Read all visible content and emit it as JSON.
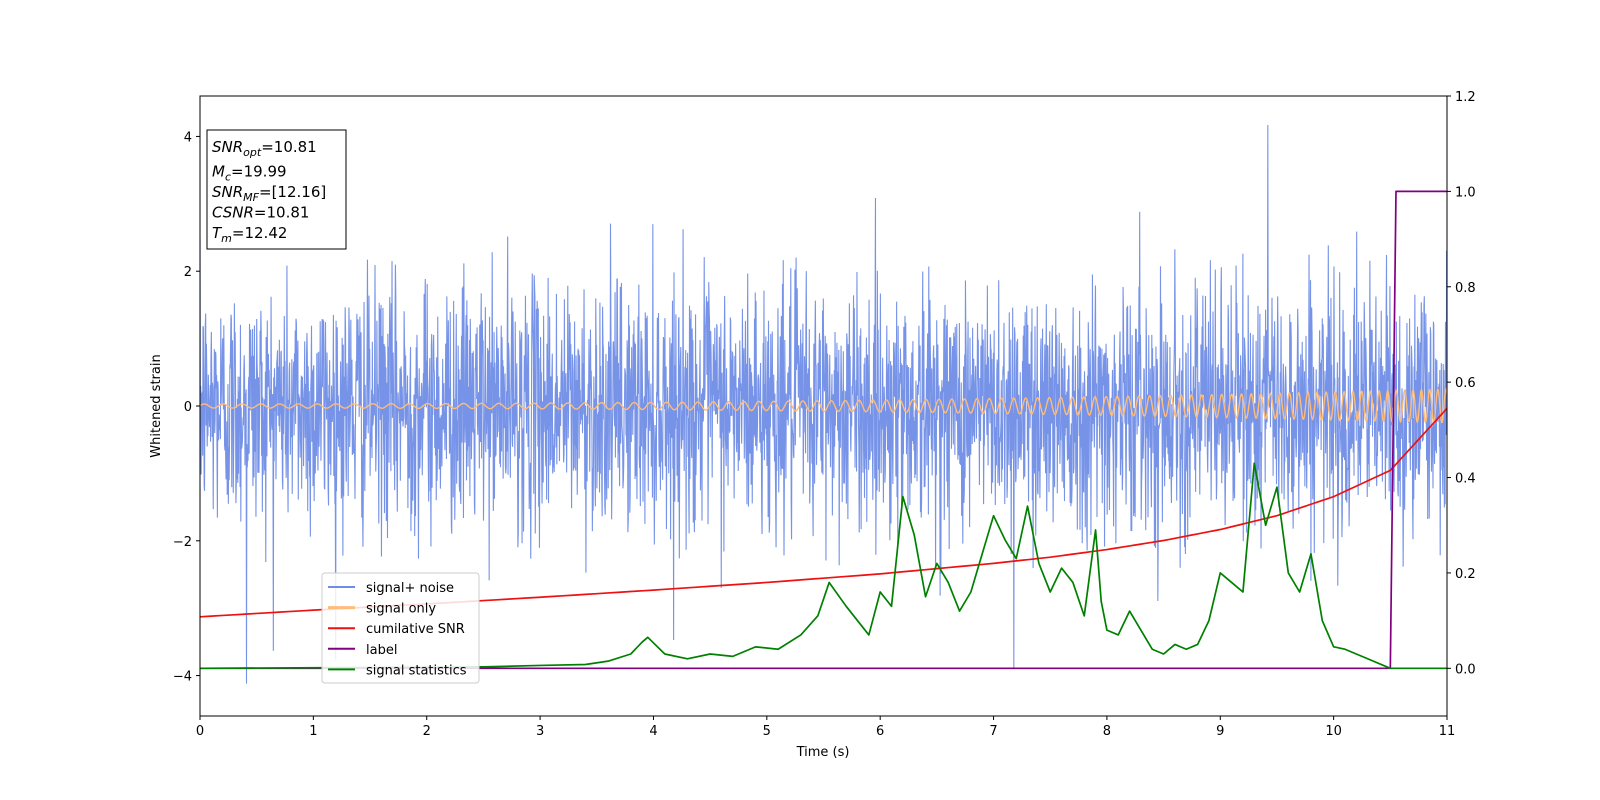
{
  "chart_data": {
    "type": "line",
    "xlabel": "Time (s)",
    "ylabel": "Whitened strain",
    "xlim": [
      0,
      11
    ],
    "ylim": [
      -4.6,
      4.6
    ],
    "y2lim": [
      -0.1,
      1.2
    ],
    "x_ticks": [
      "0",
      "1",
      "2",
      "3",
      "4",
      "5",
      "6",
      "7",
      "8",
      "9",
      "10",
      "11"
    ],
    "y_ticks": [
      "−4",
      "−2",
      "0",
      "2",
      "4"
    ],
    "y2_ticks": [
      "0.0",
      "0.2",
      "0.4",
      "0.6",
      "0.8",
      "1.0",
      "1.2"
    ],
    "legend_position": "lower-left",
    "annotation": {
      "lines": [
        {
          "sym": "SNR",
          "sub": "opt",
          "value": "=10.81"
        },
        {
          "sym": "M",
          "sub": "c",
          "value": "=19.99"
        },
        {
          "sym": "SNR",
          "sub": "MF",
          "value": "=[12.16]"
        },
        {
          "sym": "CSNR",
          "sub": "",
          "value": "=10.81"
        },
        {
          "sym": "T",
          "sub": "m",
          "value": "=12.42"
        }
      ]
    },
    "series": [
      {
        "name": "signal+ noise",
        "color": "#6f8de6",
        "axis": "left",
        "note": "dense noisy trace, roughly Gaussian with std ~0.9, spikes up to ~4.2 and down to ~-4.1",
        "noise_std": 0.9,
        "x_range": [
          0,
          11
        ],
        "peaks": [
          {
            "x": 9.42,
            "y": 4.17
          },
          {
            "x": 0.41,
            "y": -4.12
          },
          {
            "x": 7.18,
            "y": -3.9
          }
        ]
      },
      {
        "name": "signal only",
        "color": "#ffbb78",
        "axis": "left",
        "note": "chirp oscillation around 0, amplitude growing from ~0.03 to ~0.25",
        "amp_start": 0.03,
        "amp_end": 0.25
      },
      {
        "name": "cumilative SNR",
        "color": "#ee1111",
        "axis": "right",
        "x": [
          0,
          1,
          2,
          3,
          4,
          5,
          6,
          7,
          7.5,
          8,
          8.5,
          9,
          9.5,
          10,
          10.5,
          11
        ],
        "y": [
          0.108,
          0.122,
          0.135,
          0.149,
          0.164,
          0.18,
          0.198,
          0.22,
          0.233,
          0.249,
          0.268,
          0.291,
          0.32,
          0.36,
          0.415,
          0.545
        ]
      },
      {
        "name": "label",
        "color": "#800080",
        "axis": "right",
        "x": [
          0,
          10.5,
          10.55,
          11
        ],
        "y": [
          0.0,
          0.0,
          1.0,
          1.0
        ]
      },
      {
        "name": "signal statistics",
        "color": "#008000",
        "axis": "right",
        "x": [
          0,
          2.5,
          3.0,
          3.4,
          3.6,
          3.8,
          3.9,
          3.95,
          4.1,
          4.3,
          4.5,
          4.7,
          4.9,
          5.1,
          5.3,
          5.45,
          5.55,
          5.7,
          5.9,
          6.0,
          6.1,
          6.2,
          6.3,
          6.4,
          6.5,
          6.6,
          6.7,
          6.8,
          6.9,
          7.0,
          7.1,
          7.2,
          7.3,
          7.4,
          7.5,
          7.6,
          7.7,
          7.8,
          7.9,
          7.95,
          8.0,
          8.1,
          8.2,
          8.3,
          8.4,
          8.5,
          8.6,
          8.7,
          8.8,
          8.9,
          9.0,
          9.1,
          9.2,
          9.3,
          9.4,
          9.5,
          9.6,
          9.7,
          9.8,
          9.9,
          10.0,
          10.1,
          10.2,
          10.3,
          10.5,
          11
        ],
        "y": [
          0.0,
          0.003,
          0.006,
          0.008,
          0.015,
          0.03,
          0.055,
          0.065,
          0.03,
          0.02,
          0.03,
          0.025,
          0.045,
          0.04,
          0.07,
          0.11,
          0.18,
          0.13,
          0.07,
          0.16,
          0.13,
          0.36,
          0.28,
          0.15,
          0.22,
          0.18,
          0.12,
          0.16,
          0.24,
          0.32,
          0.27,
          0.23,
          0.34,
          0.22,
          0.16,
          0.21,
          0.18,
          0.11,
          0.29,
          0.14,
          0.08,
          0.07,
          0.12,
          0.08,
          0.04,
          0.03,
          0.05,
          0.04,
          0.05,
          0.1,
          0.2,
          0.18,
          0.16,
          0.43,
          0.3,
          0.38,
          0.2,
          0.16,
          0.24,
          0.1,
          0.045,
          0.04,
          0.03,
          0.02,
          0.0,
          0.0
        ]
      }
    ]
  }
}
